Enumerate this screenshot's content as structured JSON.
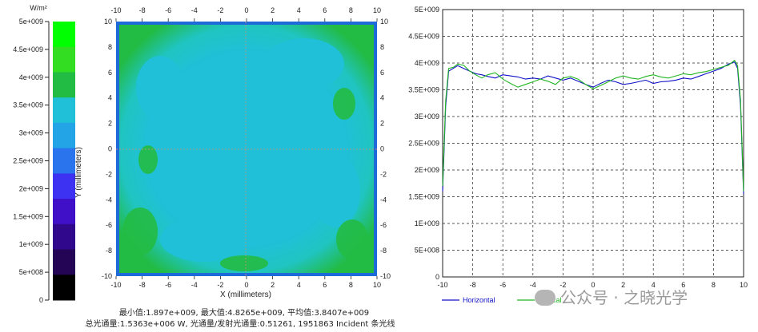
{
  "chart_data": [
    {
      "type": "heatmap",
      "legend": {
        "unit_label": "W/m²",
        "tick_labels": [
          "5e+009",
          "4.5e+009",
          "4e+009",
          "3.5e+009",
          "3e+009",
          "2.5e+009",
          "2e+009",
          "1.5e+009",
          "1e+009",
          "5e+008",
          "0"
        ],
        "colors": [
          "#00ff00",
          "#33dd22",
          "#22bb44",
          "#1fc0d8",
          "#22a4e6",
          "#2a74ee",
          "#3d32f2",
          "#3f10c8",
          "#30088c",
          "#240454",
          "#000000"
        ]
      },
      "xlabel": "X (millimeters)",
      "ylabel": "Y (millimeters)",
      "xlim": [
        -10,
        10
      ],
      "ylim": [
        -10,
        10
      ],
      "x_ticks": [
        "-10",
        "-8",
        "-6",
        "-4",
        "-2",
        "0",
        "2",
        "4",
        "6",
        "8",
        "10"
      ],
      "y_ticks": [
        "10",
        "8",
        "6",
        "4",
        "2",
        "0",
        "-2",
        "-4",
        "-6",
        "-8",
        "-10"
      ],
      "colors": {
        "center": "#1fc0d8",
        "edge": "#22bb44",
        "border": "#1e6ad8",
        "gridline": "#e08a7a"
      },
      "stats": {
        "line1": "最小值:1.897e+009, 最大值:4.8265e+009, 平均值:3.8407e+009",
        "line2": "总光通量:1.5363e+006 W, 光通量/发射光通量:0.51261, 1951863 Incident 条光线"
      }
    },
    {
      "type": "line",
      "xlim": [
        -10,
        10
      ],
      "ylim": [
        0,
        5000000000.0
      ],
      "x_ticks": [
        "-10",
        "-8",
        "-6",
        "-4",
        "-2",
        "0",
        "2",
        "4",
        "6",
        "8",
        "10"
      ],
      "y_ticks": [
        "0",
        "5E+008",
        "1E+009",
        "1.5E+009",
        "2E+009",
        "2.5E+009",
        "3E+009",
        "3.5E+009",
        "4E+009",
        "4.5E+009",
        "5E+009"
      ],
      "grid": true,
      "legend_position": "bottom-left",
      "series": [
        {
          "name": "Horizontal",
          "color": "#1010c8",
          "x": [
            -10.0,
            -9.8,
            -9.6,
            -9.3,
            -9.0,
            -8.6,
            -8.2,
            -7.8,
            -7.4,
            -7.0,
            -6.5,
            -6.0,
            -5.5,
            -5.0,
            -4.5,
            -4.0,
            -3.5,
            -3.0,
            -2.5,
            -2.0,
            -1.5,
            -1.0,
            -0.5,
            0.0,
            0.5,
            1.0,
            1.5,
            2.0,
            2.5,
            3.0,
            3.5,
            4.0,
            4.5,
            5.0,
            5.5,
            6.0,
            6.5,
            7.0,
            7.5,
            8.0,
            8.5,
            9.0,
            9.4,
            9.6,
            9.8,
            10.0
          ],
          "y": [
            1600000000.0,
            3200000000.0,
            3850000000.0,
            3900000000.0,
            3950000000.0,
            3900000000.0,
            3850000000.0,
            3800000000.0,
            3780000000.0,
            3750000000.0,
            3720000000.0,
            3780000000.0,
            3760000000.0,
            3740000000.0,
            3700000000.0,
            3720000000.0,
            3700000000.0,
            3760000000.0,
            3720000000.0,
            3680000000.0,
            3720000000.0,
            3660000000.0,
            3600000000.0,
            3550000000.0,
            3620000000.0,
            3680000000.0,
            3650000000.0,
            3600000000.0,
            3620000000.0,
            3650000000.0,
            3680000000.0,
            3620000000.0,
            3650000000.0,
            3660000000.0,
            3680000000.0,
            3720000000.0,
            3700000000.0,
            3750000000.0,
            3800000000.0,
            3850000000.0,
            3900000000.0,
            3980000000.0,
            4020000000.0,
            3900000000.0,
            3200000000.0,
            1550000000.0
          ]
        },
        {
          "name": "Vertical",
          "color": "#22b622",
          "x": [
            -10.0,
            -9.8,
            -9.6,
            -9.3,
            -9.0,
            -8.6,
            -8.2,
            -7.8,
            -7.4,
            -7.0,
            -6.5,
            -6.0,
            -5.5,
            -5.0,
            -4.5,
            -4.0,
            -3.5,
            -3.0,
            -2.5,
            -2.0,
            -1.5,
            -1.0,
            -0.5,
            0.0,
            0.5,
            1.0,
            1.5,
            2.0,
            2.5,
            3.0,
            3.5,
            4.0,
            4.5,
            5.0,
            5.5,
            6.0,
            6.5,
            7.0,
            7.5,
            8.0,
            8.5,
            9.0,
            9.4,
            9.6,
            9.8,
            10.0
          ],
          "y": [
            1700000000.0,
            3300000000.0,
            3900000000.0,
            3920000000.0,
            3980000000.0,
            3960000000.0,
            3850000000.0,
            3780000000.0,
            3720000000.0,
            3780000000.0,
            3820000000.0,
            3700000000.0,
            3620000000.0,
            3550000000.0,
            3600000000.0,
            3650000000.0,
            3700000000.0,
            3660000000.0,
            3600000000.0,
            3720000000.0,
            3750000000.0,
            3700000000.0,
            3600000000.0,
            3520000000.0,
            3580000000.0,
            3650000000.0,
            3720000000.0,
            3760000000.0,
            3720000000.0,
            3700000000.0,
            3750000000.0,
            3780000000.0,
            3740000000.0,
            3720000000.0,
            3760000000.0,
            3800000000.0,
            3780000000.0,
            3820000000.0,
            3840000000.0,
            3880000000.0,
            3920000000.0,
            3960000000.0,
            4050000000.0,
            3950000000.0,
            3300000000.0,
            1600000000.0
          ]
        }
      ]
    }
  ],
  "watermark": "公众号 · 之晓光学"
}
